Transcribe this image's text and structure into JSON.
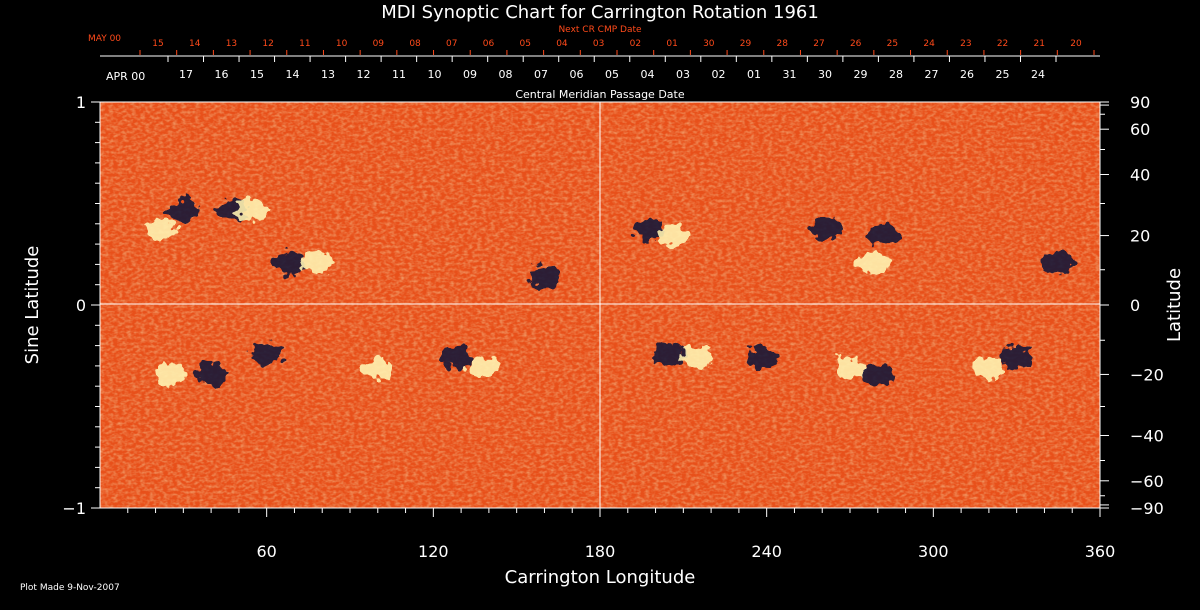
{
  "chart_data": {
    "type": "heatmap",
    "title": "MDI Synoptic Chart for Carrington Rotation 1961",
    "xlabel": "Carrington Longitude",
    "ylabel_left": "Sine Latitude",
    "ylabel_right": "Latitude",
    "top_axis_label": "Central Meridian Passage Date",
    "next_axis_label": "Next CR CMP Date",
    "footer": "Plot Made  9-Nov-2007",
    "xlim": [
      0,
      360
    ],
    "ylim": [
      -1,
      1
    ],
    "x_ticks": [
      {
        "value": 60,
        "label": "60"
      },
      {
        "value": 120,
        "label": "120"
      },
      {
        "value": 180,
        "label": "180"
      },
      {
        "value": 240,
        "label": "240"
      },
      {
        "value": 300,
        "label": "300"
      },
      {
        "value": 360,
        "label": "360"
      }
    ],
    "y_ticks_left": [
      {
        "value": 1,
        "label": "1"
      },
      {
        "value": 0,
        "label": "0"
      },
      {
        "value": -1,
        "label": "−1"
      }
    ],
    "y_ticks_right": [
      {
        "value": 90,
        "label": "90"
      },
      {
        "value": 60,
        "label": "60"
      },
      {
        "value": 40,
        "label": "40"
      },
      {
        "value": 20,
        "label": "20"
      },
      {
        "value": 0,
        "label": "0"
      },
      {
        "value": -20,
        "label": "−20"
      },
      {
        "value": -40,
        "label": "−40"
      },
      {
        "value": -60,
        "label": "−60"
      },
      {
        "value": -90,
        "label": "−90"
      }
    ],
    "cmp_month_label": "APR 00",
    "cmp_dates": [
      "17",
      "16",
      "15",
      "14",
      "13",
      "12",
      "11",
      "10",
      "09",
      "08",
      "07",
      "06",
      "05",
      "04",
      "03",
      "02",
      "01",
      "31",
      "30",
      "29",
      "28",
      "27",
      "26",
      "25",
      "24"
    ],
    "next_month_label": "MAY 00",
    "next_dates": [
      "15",
      "14",
      "13",
      "12",
      "11",
      "10",
      "09",
      "08",
      "07",
      "06",
      "05",
      "04",
      "03",
      "02",
      "01",
      "30",
      "29",
      "28",
      "27",
      "26",
      "25",
      "24",
      "23",
      "22",
      "21",
      "20"
    ],
    "colors": {
      "background": "#000000",
      "text": "#ffffff",
      "next_axis": "#ff4a1a",
      "field_base": "#e8501a",
      "positive_polarity": "#fff2b0",
      "negative_polarity": "#141438"
    },
    "regions": [
      {
        "hemisphere": "north",
        "lon": 22,
        "lat": 22,
        "polarity": "positive"
      },
      {
        "hemisphere": "north",
        "lon": 30,
        "lat": 28,
        "polarity": "negative"
      },
      {
        "hemisphere": "north",
        "lon": 48,
        "lat": 28,
        "polarity": "negative"
      },
      {
        "hemisphere": "north",
        "lon": 55,
        "lat": 28,
        "polarity": "positive"
      },
      {
        "hemisphere": "north",
        "lon": 68,
        "lat": 12,
        "polarity": "negative"
      },
      {
        "hemisphere": "north",
        "lon": 78,
        "lat": 12,
        "polarity": "positive"
      },
      {
        "hemisphere": "north",
        "lon": 160,
        "lat": 8,
        "polarity": "negative"
      },
      {
        "hemisphere": "north",
        "lon": 198,
        "lat": 22,
        "polarity": "negative"
      },
      {
        "hemisphere": "north",
        "lon": 206,
        "lat": 20,
        "polarity": "positive"
      },
      {
        "hemisphere": "north",
        "lon": 262,
        "lat": 22,
        "polarity": "negative"
      },
      {
        "hemisphere": "north",
        "lon": 282,
        "lat": 20,
        "polarity": "negative"
      },
      {
        "hemisphere": "north",
        "lon": 278,
        "lat": 12,
        "polarity": "positive"
      },
      {
        "hemisphere": "north",
        "lon": 345,
        "lat": 12,
        "polarity": "negative"
      },
      {
        "hemisphere": "south",
        "lon": 25,
        "lat": -20,
        "polarity": "positive"
      },
      {
        "hemisphere": "south",
        "lon": 40,
        "lat": -20,
        "polarity": "negative"
      },
      {
        "hemisphere": "south",
        "lon": 60,
        "lat": -14,
        "polarity": "negative"
      },
      {
        "hemisphere": "south",
        "lon": 100,
        "lat": -18,
        "polarity": "positive"
      },
      {
        "hemisphere": "south",
        "lon": 128,
        "lat": -15,
        "polarity": "negative"
      },
      {
        "hemisphere": "south",
        "lon": 138,
        "lat": -18,
        "polarity": "positive"
      },
      {
        "hemisphere": "south",
        "lon": 205,
        "lat": -14,
        "polarity": "negative"
      },
      {
        "hemisphere": "south",
        "lon": 215,
        "lat": -15,
        "polarity": "positive"
      },
      {
        "hemisphere": "south",
        "lon": 238,
        "lat": -15,
        "polarity": "negative"
      },
      {
        "hemisphere": "south",
        "lon": 270,
        "lat": -18,
        "polarity": "positive"
      },
      {
        "hemisphere": "south",
        "lon": 280,
        "lat": -20,
        "polarity": "negative"
      },
      {
        "hemisphere": "south",
        "lon": 320,
        "lat": -18,
        "polarity": "positive"
      },
      {
        "hemisphere": "south",
        "lon": 330,
        "lat": -15,
        "polarity": "negative"
      }
    ]
  }
}
